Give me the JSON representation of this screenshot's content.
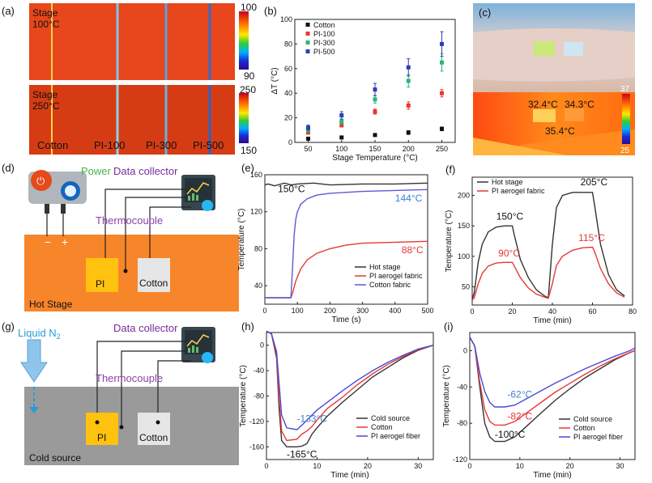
{
  "panel_letters": [
    "(a)",
    "(b)",
    "(c)",
    "(d)",
    "(e)",
    "(f)",
    "(g)",
    "(h)",
    "(i)"
  ],
  "panel_a": {
    "top_label_1": "Stage",
    "top_label_2": "100°C",
    "bottom_label_1": "Stage",
    "bottom_label_2": "250°C",
    "samples": [
      "Cotton",
      "PI-100",
      "PI-300",
      "PI-500"
    ],
    "colorbar_top": {
      "max": "100",
      "min": "90"
    },
    "colorbar_bottom": {
      "max": "250",
      "min": "150"
    },
    "colors": {
      "hot": "#e8461c",
      "hot_dark": "#d63c14",
      "stripe": "#6aa7d8"
    }
  },
  "panel_c": {
    "labels": [
      "32.4°C",
      "34.3°C",
      "35.4°C"
    ],
    "colorbar": {
      "max": "37",
      "min": "25"
    }
  },
  "panel_d": {
    "power": "Power",
    "data_collector": "Data collector",
    "thermocouple": "Thermocouple",
    "minus": "−",
    "plus": "+",
    "box_pi": "PI",
    "box_cotton": "Cotton",
    "stage_label": "Hot Stage",
    "colors": {
      "stage": "#f7852a",
      "pi_box": "#ffc20e",
      "cotton_box": "#e6e6e6",
      "power_text": "#4caf50",
      "thermo_text": "#8a3fa8"
    }
  },
  "panel_g": {
    "liquid_prefix": "Liquid N",
    "liquid_sub": "2",
    "data_collector": "Data collector",
    "thermocouple": "Thermocouple",
    "box_pi": "PI",
    "box_cotton": "Cotton",
    "stage_label": "Cold source",
    "colors": {
      "stage": "#9a9a9a",
      "liquid": "#2a9bd8"
    }
  },
  "chart_data": [
    {
      "id": "b",
      "type": "scatter",
      "title": "",
      "xlabel": "Stage Temperature (°C)",
      "ylabel": "ΔT (°C)",
      "categories": [
        50,
        100,
        150,
        200,
        250
      ],
      "xlim": [
        30,
        270
      ],
      "ylim": [
        0,
        100
      ],
      "xticks": [
        50,
        100,
        150,
        200,
        250
      ],
      "yticks": [
        0,
        20,
        40,
        60,
        80,
        100
      ],
      "legend_position": "top-left",
      "series": [
        {
          "name": "Cotton",
          "color": "#111111",
          "values": [
            3,
            4,
            6,
            8,
            11
          ],
          "errors": [
            0.5,
            0.5,
            1,
            1.5,
            1.5
          ]
        },
        {
          "name": "PI-100",
          "color": "#e53935",
          "values": [
            8,
            14,
            25,
            30,
            40
          ],
          "errors": [
            1,
            1.5,
            2,
            3,
            3
          ]
        },
        {
          "name": "PI-300",
          "color": "#2bb673",
          "values": [
            10,
            17,
            35,
            50,
            65
          ],
          "errors": [
            1.5,
            2,
            3,
            5,
            7
          ]
        },
        {
          "name": "PI-500",
          "color": "#2d3fb3",
          "values": [
            12,
            22,
            43,
            61,
            80
          ],
          "errors": [
            2,
            3,
            5,
            7,
            10
          ]
        }
      ]
    },
    {
      "id": "e",
      "type": "line",
      "xlabel": "Time (s)",
      "ylabel": "Temperature (°C)",
      "xlim": [
        0,
        500
      ],
      "ylim": [
        20,
        160
      ],
      "xticks": [
        0,
        100,
        200,
        300,
        400,
        500
      ],
      "yticks": [
        40,
        80,
        120,
        160
      ],
      "legend_position": "bottom-right",
      "annotations": [
        {
          "text": "150°C",
          "x": 40,
          "y": 141,
          "color": "#111111"
        },
        {
          "text": "144°C",
          "x": 400,
          "y": 131,
          "color": "#3f7fd6"
        },
        {
          "text": "88°C",
          "x": 420,
          "y": 75,
          "color": "#e53935"
        }
      ],
      "series": [
        {
          "name": "Hot stage",
          "color": "#333333",
          "x": [
            0,
            10,
            30,
            60,
            80,
            100,
            150,
            200,
            300,
            400,
            500
          ],
          "y": [
            149,
            150,
            148,
            151,
            149,
            150,
            151,
            149,
            150,
            150,
            151
          ]
        },
        {
          "name": "PI aerogel fabric",
          "color": "#e53935",
          "x": [
            0,
            80,
            85,
            95,
            110,
            130,
            160,
            200,
            250,
            300,
            400,
            500
          ],
          "y": [
            27,
            27,
            32,
            45,
            58,
            68,
            75,
            80,
            84,
            86,
            87,
            88
          ]
        },
        {
          "name": "Cotton fabric",
          "color": "#5b5bd6",
          "x": [
            0,
            80,
            85,
            90,
            95,
            100,
            110,
            130,
            160,
            200,
            300,
            400,
            500
          ],
          "y": [
            27,
            27,
            60,
            95,
            112,
            120,
            128,
            134,
            138,
            140,
            142,
            143,
            144
          ]
        }
      ]
    },
    {
      "id": "f",
      "type": "line",
      "xlabel": "Time (min)",
      "ylabel": "Temperature (°C)",
      "xlim": [
        0,
        80
      ],
      "ylim": [
        20,
        230
      ],
      "xticks": [
        0,
        20,
        40,
        60,
        80
      ],
      "yticks": [
        50,
        100,
        150,
        200
      ],
      "legend_position": "top-left",
      "annotations": [
        {
          "text": "205°C",
          "x": 54,
          "y": 217,
          "color": "#111111"
        },
        {
          "text": "150°C",
          "x": 12,
          "y": 160,
          "color": "#111111"
        },
        {
          "text": "90°C",
          "x": 13,
          "y": 100,
          "color": "#e53935"
        },
        {
          "text": "115°C",
          "x": 53,
          "y": 125,
          "color": "#e53935"
        }
      ],
      "series": [
        {
          "name": "Hot stage",
          "color": "#333333",
          "x": [
            0,
            1,
            3,
            5,
            8,
            12,
            16,
            20,
            21,
            24,
            28,
            32,
            36,
            38,
            40,
            42,
            45,
            50,
            55,
            60,
            61,
            64,
            68,
            72,
            76
          ],
          "y": [
            30,
            40,
            90,
            120,
            140,
            148,
            150,
            150,
            135,
            95,
            65,
            45,
            35,
            32,
            120,
            180,
            200,
            205,
            205,
            205,
            185,
            120,
            70,
            45,
            35
          ]
        },
        {
          "name": "PI aerogel fabric",
          "color": "#e53935",
          "x": [
            0,
            1,
            3,
            5,
            8,
            12,
            16,
            20,
            21,
            24,
            28,
            32,
            36,
            38,
            40,
            42,
            45,
            50,
            55,
            60,
            61,
            64,
            68,
            72,
            76
          ],
          "y": [
            28,
            32,
            55,
            72,
            84,
            89,
            90,
            90,
            84,
            65,
            48,
            38,
            33,
            31,
            55,
            85,
            100,
            110,
            114,
            115,
            108,
            80,
            55,
            40,
            33
          ]
        }
      ]
    },
    {
      "id": "h",
      "type": "line",
      "xlabel": "Time (min)",
      "ylabel": "Temperature (°C)",
      "xlim": [
        0,
        33
      ],
      "ylim": [
        -180,
        20
      ],
      "xticks": [
        0,
        10,
        20,
        30
      ],
      "yticks": [
        -160,
        -120,
        -80,
        -40,
        0
      ],
      "legend_position": "bottom-right",
      "annotations": [
        {
          "text": "-133°C",
          "x": 6,
          "y": -121,
          "color": "#3f7fd6"
        },
        {
          "text": "-165°C",
          "x": 4,
          "y": -177,
          "color": "#111111"
        }
      ],
      "series": [
        {
          "name": "Cold source",
          "color": "#333333",
          "x": [
            0,
            1,
            2,
            2.5,
            3,
            4,
            6,
            7,
            8,
            9,
            10,
            12,
            15,
            18,
            21,
            24,
            27,
            30,
            33
          ],
          "y": [
            22,
            18,
            -20,
            -100,
            -150,
            -160,
            -160,
            -159,
            -155,
            -140,
            -130,
            -112,
            -90,
            -70,
            -50,
            -35,
            -20,
            -8,
            0
          ]
        },
        {
          "name": "Cotton",
          "color": "#e53935",
          "x": [
            0,
            1,
            2,
            2.5,
            3,
            4,
            6,
            7,
            8,
            9,
            10,
            12,
            15,
            18,
            21,
            24,
            27,
            30,
            33
          ],
          "y": [
            22,
            18,
            -15,
            -85,
            -135,
            -150,
            -148,
            -140,
            -135,
            -128,
            -118,
            -100,
            -82,
            -62,
            -45,
            -30,
            -18,
            -7,
            0
          ]
        },
        {
          "name": "PI aerogel fiber",
          "color": "#4a4ad6",
          "x": [
            0,
            1,
            2,
            2.5,
            3,
            4,
            6,
            7,
            8,
            9,
            10,
            12,
            15,
            18,
            21,
            24,
            27,
            30,
            33
          ],
          "y": [
            22,
            18,
            -10,
            -60,
            -110,
            -130,
            -133,
            -126,
            -118,
            -110,
            -102,
            -90,
            -72,
            -55,
            -40,
            -27,
            -16,
            -6,
            0
          ]
        }
      ]
    },
    {
      "id": "i",
      "type": "line",
      "xlabel": "Time (min)",
      "ylabel": "Temperature (°C)",
      "xlim": [
        0,
        33
      ],
      "ylim": [
        -120,
        20
      ],
      "xticks": [
        0,
        10,
        20,
        30
      ],
      "yticks": [
        -120,
        -80,
        -40,
        0
      ],
      "legend_position": "bottom-right",
      "annotations": [
        {
          "text": "-62°C",
          "x": 7.5,
          "y": -52,
          "color": "#3f7fd6"
        },
        {
          "text": "-82°C",
          "x": 7.5,
          "y": -76,
          "color": "#e53935"
        },
        {
          "text": "-100°C",
          "x": 5,
          "y": -96,
          "color": "#111111"
        }
      ],
      "series": [
        {
          "name": "Cold source",
          "color": "#333333",
          "x": [
            0,
            1,
            2,
            3,
            4,
            5,
            7,
            9,
            11,
            14,
            17,
            20,
            23,
            26,
            29,
            32,
            33
          ],
          "y": [
            15,
            5,
            -40,
            -80,
            -95,
            -100,
            -100,
            -95,
            -85,
            -70,
            -55,
            -42,
            -30,
            -20,
            -10,
            -2,
            0
          ]
        },
        {
          "name": "Cotton",
          "color": "#e53935",
          "x": [
            0,
            1,
            2,
            3,
            4,
            5,
            7,
            9,
            11,
            14,
            17,
            20,
            23,
            26,
            29,
            32,
            33
          ],
          "y": [
            15,
            5,
            -35,
            -65,
            -78,
            -82,
            -82,
            -78,
            -70,
            -58,
            -46,
            -36,
            -26,
            -17,
            -9,
            -2,
            0
          ]
        },
        {
          "name": "PI aerogel fiber",
          "color": "#4a4ad6",
          "x": [
            0,
            1,
            2,
            3,
            4,
            5,
            7,
            9,
            11,
            14,
            17,
            20,
            23,
            26,
            29,
            32,
            33
          ],
          "y": [
            15,
            5,
            -25,
            -45,
            -57,
            -62,
            -62,
            -60,
            -54,
            -45,
            -36,
            -28,
            -20,
            -13,
            -6,
            0,
            3
          ]
        }
      ]
    }
  ]
}
